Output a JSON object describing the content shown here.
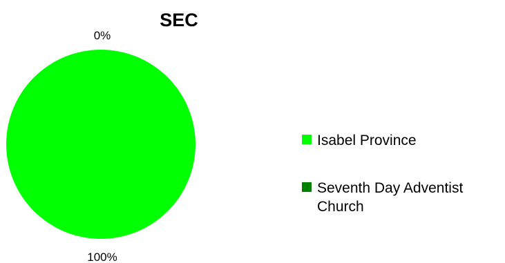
{
  "chart_data": {
    "type": "pie",
    "title": "SEC",
    "slices": [
      {
        "label": "Isabel Province",
        "value": 100,
        "percent_label": "100%",
        "color": "#00ff00"
      },
      {
        "label": "Seventh Day Adventist Church",
        "value": 0,
        "percent_label": "0%",
        "color": "#008000"
      }
    ],
    "legend": {
      "placement": "right",
      "entries": [
        {
          "lines": [
            "Isabel Province"
          ],
          "color": "#00ff00"
        },
        {
          "lines": [
            "Seventh Day Adventist",
            "Church"
          ],
          "color": "#008000"
        }
      ]
    }
  }
}
